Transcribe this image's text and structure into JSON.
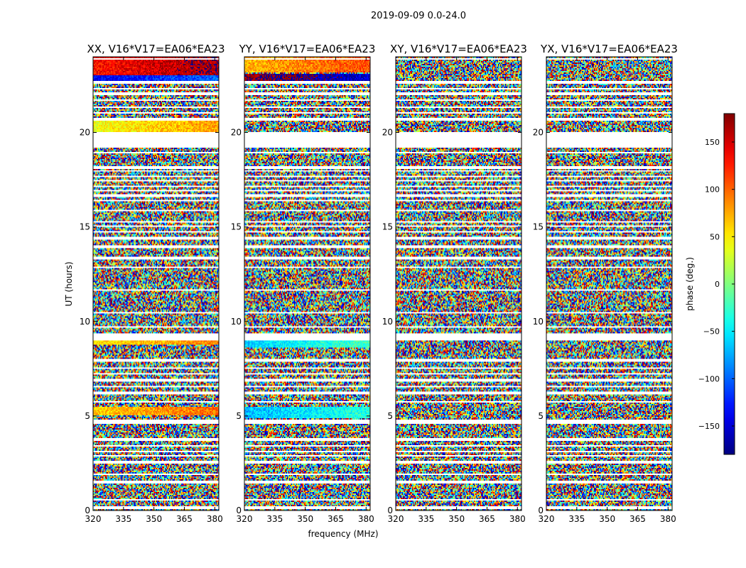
{
  "chart_data": {
    "type": "heatmap",
    "title": "2019-09-09 0.0-24.0",
    "xlabel": "frequency (MHz)",
    "ylabel": "UT (hours)",
    "xlim": [
      320,
      382
    ],
    "ylim": [
      0,
      24
    ],
    "xticks": [
      320,
      335,
      350,
      365,
      380
    ],
    "yticks": [
      0,
      5,
      10,
      15,
      20
    ],
    "colorbar": {
      "label": "phase (deg.)",
      "range": [
        -180,
        180
      ],
      "ticks": [
        -150,
        -100,
        -50,
        0,
        50,
        100,
        150
      ],
      "tick_labels": [
        "−150",
        "−100",
        "−50",
        "0",
        "50",
        "100",
        "150"
      ],
      "colormap": "jet"
    },
    "panels": [
      {
        "title": "XX, V16*V17=EA06*EA23",
        "pol": "XX",
        "coherent_bands": [
          [
            23.0,
            24.0,
            150
          ],
          [
            22.7,
            23.2,
            -120
          ],
          [
            19.8,
            20.6,
            60
          ],
          [
            5.0,
            5.5,
            80
          ],
          [
            8.8,
            9.0,
            70
          ]
        ]
      },
      {
        "title": "YY, V16*V17=EA06*EA23",
        "pol": "YY",
        "coherent_bands": [
          [
            23.2,
            24.0,
            90
          ],
          [
            22.7,
            23.1,
            -170
          ],
          [
            8.6,
            9.0,
            -40
          ],
          [
            4.9,
            5.5,
            -50
          ]
        ]
      },
      {
        "title": "XY, V16*V17=EA06*EA23",
        "pol": "XY",
        "coherent_bands": []
      },
      {
        "title": "YX, V16*V17=EA06*EA23",
        "pol": "YX",
        "coherent_bands": []
      }
    ],
    "flagged_rows_ut": [
      [
        0.1,
        0.2
      ],
      [
        0.55,
        0.6
      ],
      [
        1.4,
        1.55
      ],
      [
        1.85,
        1.95
      ],
      [
        2.15,
        2.2
      ],
      [
        2.5,
        2.6
      ],
      [
        2.85,
        2.9
      ],
      [
        3.1,
        3.15
      ],
      [
        3.35,
        3.45
      ],
      [
        3.7,
        3.8
      ],
      [
        4.1,
        4.15
      ],
      [
        4.6,
        4.8
      ],
      [
        5.7,
        5.8
      ],
      [
        6.15,
        6.3
      ],
      [
        6.5,
        6.6
      ],
      [
        6.8,
        7.0
      ],
      [
        7.2,
        7.3
      ],
      [
        7.5,
        7.6
      ],
      [
        7.9,
        8.0
      ],
      [
        9.0,
        9.4
      ],
      [
        9.7,
        9.75
      ],
      [
        10.4,
        10.5
      ],
      [
        11.0,
        11.05
      ],
      [
        11.6,
        11.7
      ],
      [
        12.2,
        12.25
      ],
      [
        12.8,
        12.9
      ],
      [
        13.3,
        13.4
      ],
      [
        13.9,
        14.0
      ],
      [
        14.3,
        14.45
      ],
      [
        14.7,
        14.8
      ],
      [
        15.0,
        15.05
      ],
      [
        15.25,
        15.3
      ],
      [
        15.5,
        15.55
      ],
      [
        15.8,
        15.9
      ],
      [
        16.1,
        16.15
      ],
      [
        16.35,
        16.4
      ],
      [
        16.6,
        16.7
      ],
      [
        16.9,
        16.95
      ],
      [
        17.1,
        17.15
      ],
      [
        17.4,
        17.5
      ],
      [
        17.6,
        17.7
      ],
      [
        17.9,
        18.0
      ],
      [
        18.1,
        18.2
      ],
      [
        18.5,
        18.55
      ],
      [
        18.9,
        18.95
      ],
      [
        19.2,
        20.0
      ],
      [
        20.6,
        20.8
      ],
      [
        21.0,
        21.1
      ],
      [
        21.3,
        21.4
      ],
      [
        21.7,
        21.75
      ],
      [
        22.0,
        22.1
      ],
      [
        22.3,
        22.35
      ],
      [
        22.6,
        22.7
      ],
      [
        23.3,
        23.35
      ],
      [
        23.6,
        23.65
      ],
      [
        23.85,
        23.9
      ]
    ]
  }
}
